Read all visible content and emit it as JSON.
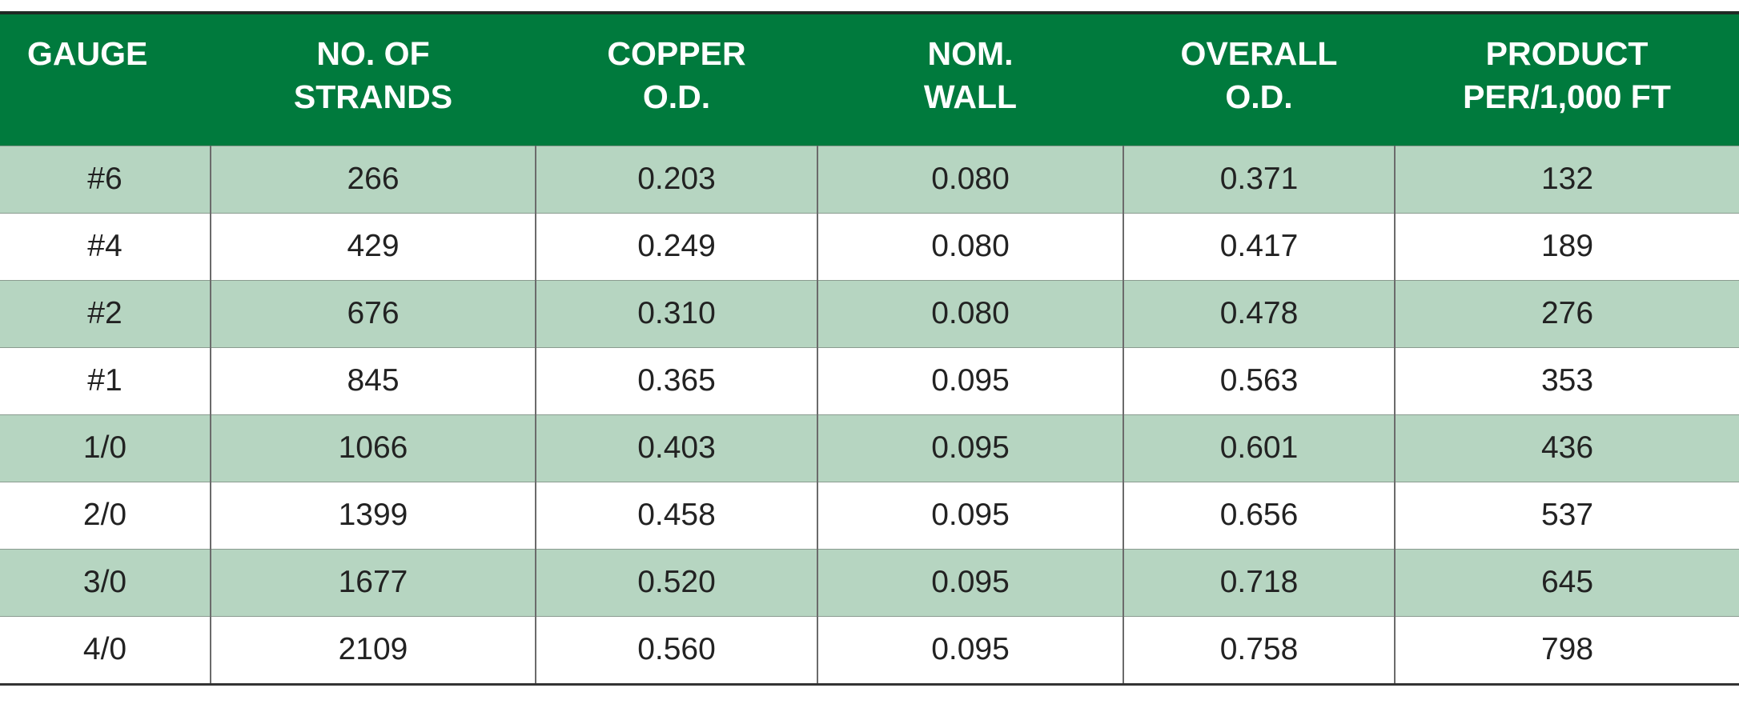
{
  "table": {
    "header": [
      "GAUGE",
      "NO. OF\nSTRANDS",
      "COPPER\nO.D.",
      "NOM.\nWALL",
      "OVERALL\nO.D.",
      "PRODUCT\nPER/1,000 FT"
    ],
    "rows": [
      [
        "#6",
        "266",
        "0.203",
        "0.080",
        "0.371",
        "132"
      ],
      [
        "#4",
        "429",
        "0.249",
        "0.080",
        "0.417",
        "189"
      ],
      [
        "#2",
        "676",
        "0.310",
        "0.080",
        "0.478",
        "276"
      ],
      [
        "#1",
        "845",
        "0.365",
        "0.095",
        "0.563",
        "353"
      ],
      [
        "1/0",
        "1066",
        "0.403",
        "0.095",
        "0.601",
        "436"
      ],
      [
        "2/0",
        "1399",
        "0.458",
        "0.095",
        "0.656",
        "537"
      ],
      [
        "3/0",
        "1677",
        "0.520",
        "0.095",
        "0.718",
        "645"
      ],
      [
        "4/0",
        "2109",
        "0.560",
        "0.095",
        "0.758",
        "798"
      ]
    ]
  }
}
